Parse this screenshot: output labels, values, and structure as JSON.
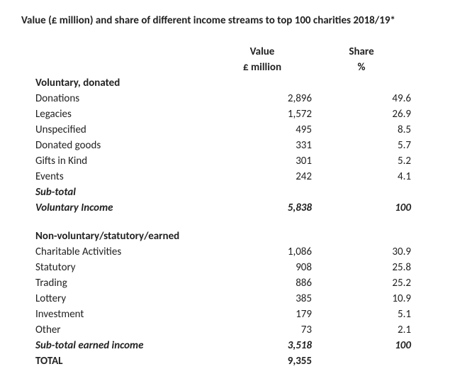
{
  "title": "Value (£ million) and share of different income streams to top 100 charities 2018/19*",
  "headers": {
    "value_label": "Value",
    "value_unit": "£ million",
    "share_label": "Share",
    "share_unit": "%"
  },
  "voluntary": {
    "section_label": "Voluntary, donated",
    "rows": [
      {
        "label": "Donations",
        "value": "2,896",
        "share": "49.6"
      },
      {
        "label": "Legacies",
        "value": "1,572",
        "share": "26.9"
      },
      {
        "label": "Unspecified",
        "value": "495",
        "share": "8.5"
      },
      {
        "label": "Donated goods",
        "value": "331",
        "share": "5.7"
      },
      {
        "label": "Gifts in Kind",
        "value": "301",
        "share": "5.2"
      },
      {
        "label": "Events",
        "value": "242",
        "share": "4.1"
      }
    ],
    "subtotal_label_line1": "Sub-total",
    "subtotal_label_line2": "Voluntary Income",
    "subtotal_value": "5,838",
    "subtotal_share": "100"
  },
  "nonvoluntary": {
    "section_label": "Non-voluntary/statutory/earned",
    "rows": [
      {
        "label": "Charitable Activities",
        "value": "1,086",
        "share": "30.9"
      },
      {
        "label": "Statutory",
        "value": "908",
        "share": "25.8"
      },
      {
        "label": "Trading",
        "value": "886",
        "share": "25.2"
      },
      {
        "label": "Lottery",
        "value": "385",
        "share": "10.9"
      },
      {
        "label": "Investment",
        "value": "179",
        "share": "5.1"
      },
      {
        "label": "Other",
        "value": "73",
        "share": "2.1"
      }
    ],
    "subtotal_label": "Sub-total earned income",
    "subtotal_value": "3,518",
    "subtotal_share": "100"
  },
  "total": {
    "label": "TOTAL",
    "value": "9,355"
  }
}
